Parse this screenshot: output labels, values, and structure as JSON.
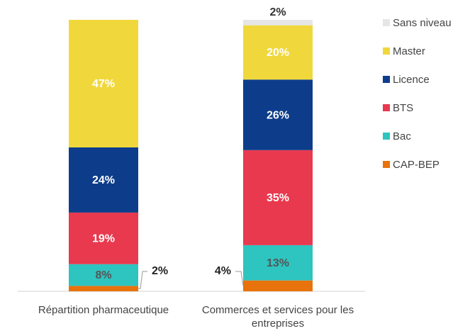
{
  "chart_data": {
    "type": "stacked-bar",
    "categories": [
      "Répartition pharmaceutique",
      "Commerces et services pour les entreprises"
    ],
    "series": [
      {
        "name": "CAP-BEP",
        "color": "#e8720c",
        "values": [
          2,
          4
        ],
        "value_labels": [
          "2%",
          "4%"
        ]
      },
      {
        "name": "Bac",
        "color": "#2ec4c0",
        "values": [
          8,
          13
        ],
        "value_labels": [
          "8%",
          "13%"
        ]
      },
      {
        "name": "BTS",
        "color": "#e8394f",
        "values": [
          19,
          35
        ],
        "value_labels": [
          "19%",
          "35%"
        ]
      },
      {
        "name": "Licence",
        "color": "#0d3d8a",
        "values": [
          24,
          26
        ],
        "value_labels": [
          "24%",
          "26%"
        ]
      },
      {
        "name": "Master",
        "color": "#f0d83c",
        "values": [
          47,
          20
        ],
        "value_labels": [
          "47%",
          "20%"
        ]
      },
      {
        "name": "Sans niveau",
        "color": "#e6e6e6",
        "values": [
          0,
          2
        ],
        "value_labels": [
          null,
          "2%"
        ]
      }
    ],
    "legend": "right"
  }
}
